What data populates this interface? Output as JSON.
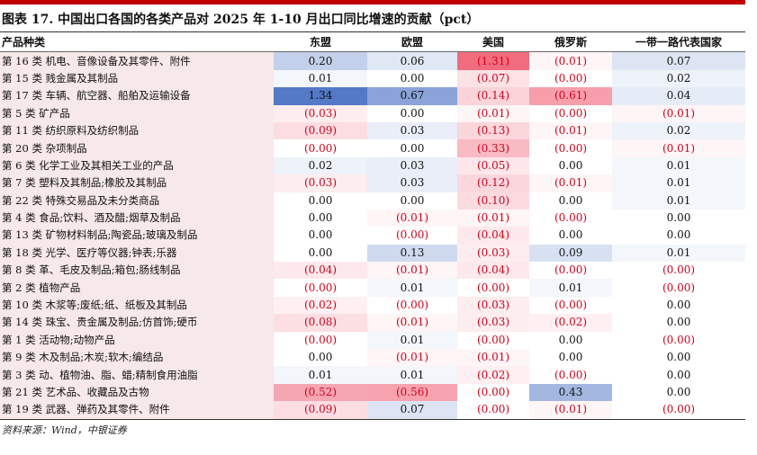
{
  "title": "图表 17. 中国出口各国的各类产品对 2025 年 1-10 月出口同比增速的贡献（pct）",
  "header": {
    "product": "产品种类",
    "asean": "东盟",
    "eu": "欧盟",
    "us": "美国",
    "russia": "俄罗斯",
    "bri": "一带一路代表国家"
  },
  "rows": [
    {
      "label": "第 16 类  机电、音像设备及其零件、附件",
      "cells": [
        "0.20",
        "0.06",
        "(1.31)",
        "(0.01)",
        "0.07"
      ]
    },
    {
      "label": "第 15 类  贱金属及其制品",
      "cells": [
        "0.01",
        "0.00",
        "(0.07)",
        "(0.00)",
        "0.02"
      ]
    },
    {
      "label": "第 17 类  车辆、航空器、船舶及运输设备",
      "cells": [
        "1.34",
        "0.67",
        "(0.14)",
        "(0.61)",
        "0.04"
      ]
    },
    {
      "label": "第 5 类  矿产品",
      "cells": [
        "(0.03)",
        "0.00",
        "(0.01)",
        "(0.00)",
        "(0.01)"
      ]
    },
    {
      "label": "第 11 类  纺织原料及纺织制品",
      "cells": [
        "(0.09)",
        "0.03",
        "(0.13)",
        "(0.01)",
        "0.02"
      ]
    },
    {
      "label": "第 20 类  杂项制品",
      "cells": [
        "(0.00)",
        "0.00",
        "(0.33)",
        "(0.00)",
        "(0.01)"
      ]
    },
    {
      "label": "第 6 类  化学工业及其相关工业的产品",
      "cells": [
        "0.02",
        "0.03",
        "(0.05)",
        "0.00",
        "0.01"
      ]
    },
    {
      "label": "第 7 类  塑料及其制品;橡胶及其制品",
      "cells": [
        "(0.03)",
        "0.03",
        "(0.12)",
        "(0.01)",
        "0.01"
      ]
    },
    {
      "label": "第 22 类  特殊交易品及未分类商品",
      "cells": [
        "0.00",
        "0.00",
        "(0.10)",
        "0.00",
        "0.01"
      ]
    },
    {
      "label": "第 4 类  食品;饮料、酒及醋;烟草及制品",
      "cells": [
        "0.00",
        "(0.01)",
        "(0.01)",
        "(0.00)",
        "0.00"
      ]
    },
    {
      "label": "第 13 类  矿物材料制品;陶瓷品;玻璃及制品",
      "cells": [
        "0.00",
        "(0.00)",
        "(0.04)",
        "0.00",
        "0.00"
      ]
    },
    {
      "label": "第 18 类  光学、医疗等仪器;钟表;乐器",
      "cells": [
        "0.00",
        "0.13",
        "(0.03)",
        "0.09",
        "0.01"
      ]
    },
    {
      "label": "第 8 类  革、毛皮及制品;箱包;肠线制品",
      "cells": [
        "(0.04)",
        "(0.01)",
        "(0.04)",
        "(0.00)",
        "(0.00)"
      ]
    },
    {
      "label": "第 2 类  植物产品",
      "cells": [
        "(0.00)",
        "0.01",
        "(0.00)",
        "0.01",
        "(0.00)"
      ]
    },
    {
      "label": "第 10 类  木浆等;废纸;纸、纸板及其制品",
      "cells": [
        "(0.02)",
        "(0.00)",
        "(0.03)",
        "(0.00)",
        "0.00"
      ]
    },
    {
      "label": "第 14 类  珠宝、贵金属及制品;仿首饰;硬币",
      "cells": [
        "(0.08)",
        "(0.01)",
        "(0.03)",
        "(0.02)",
        "0.00"
      ]
    },
    {
      "label": "第 1 类  活动物;动物产品",
      "cells": [
        "(0.00)",
        "0.01",
        "(0.00)",
        "0.00",
        "(0.00)"
      ]
    },
    {
      "label": "第 9 类  木及制品;木炭;软木;编结品",
      "cells": [
        "0.00",
        "(0.01)",
        "(0.01)",
        "0.00",
        "0.00"
      ]
    },
    {
      "label": "第 3 类  动、植物油、脂、蜡;精制食用油脂",
      "cells": [
        "0.01",
        "0.01",
        "(0.02)",
        "(0.00)",
        "0.00"
      ]
    },
    {
      "label": "第 21 类  艺术品、收藏品及古物",
      "cells": [
        "(0.52)",
        "(0.56)",
        "(0.00)",
        "0.43",
        "0.00"
      ]
    },
    {
      "label": "第 19 类  武器、弹药及其零件、附件",
      "cells": [
        "(0.09)",
        "0.07",
        "(0.00)",
        "(0.01)",
        "(0.00)"
      ]
    }
  ],
  "footer": "资料来源：Wind，中银证券",
  "colors": {
    "accent": "#c00000",
    "negative_text": "#d0021b",
    "label_bg": "#f7e8ea",
    "positive_scale": "#4a72c4",
    "negative_scale": "#f06478"
  }
}
